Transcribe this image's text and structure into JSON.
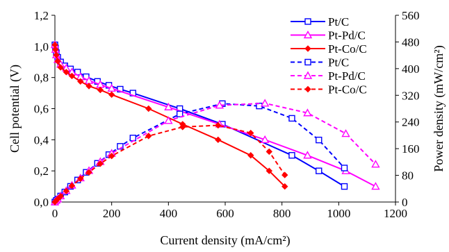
{
  "chart_data": {
    "type": "line",
    "xlabel": "Current density (mA/cm²)",
    "ylabel_left": "Cell potential (V)",
    "ylabel_right": "Power density (mW/cm²)",
    "xlim": [
      0,
      1200
    ],
    "ylim_left": [
      0,
      1.2
    ],
    "ylim_right": [
      0,
      560
    ],
    "x_ticks": [
      0,
      200,
      400,
      600,
      800,
      1000,
      1200
    ],
    "x_tick_labels": [
      "0",
      "200",
      "400",
      "600",
      "800",
      "1000",
      "1200"
    ],
    "y_left_ticks": [
      0,
      0.2,
      0.4,
      0.6,
      0.8,
      1.0,
      1.2
    ],
    "y_left_tick_labels": [
      "0,0",
      "0,2",
      "0,4",
      "0,6",
      "0,8",
      "1,0",
      "1,2"
    ],
    "y_right_ticks": [
      0,
      80,
      160,
      240,
      320,
      400,
      480,
      560
    ],
    "y_right_tick_labels": [
      "0",
      "80",
      "160",
      "240",
      "320",
      "400",
      "480",
      "560"
    ],
    "grid": false,
    "legend_position": "top-right",
    "series": [
      {
        "name": "Pt/C",
        "axis": "left",
        "style": "solid",
        "marker": "square",
        "color": "#0000ff",
        "x": [
          0,
          2,
          5,
          10,
          20,
          35,
          55,
          80,
          110,
          150,
          190,
          230,
          275,
          440,
          590,
          835,
          930,
          1020
        ],
        "y": [
          1.01,
          0.99,
          0.96,
          0.93,
          0.9,
          0.875,
          0.855,
          0.835,
          0.805,
          0.775,
          0.75,
          0.725,
          0.7,
          0.6,
          0.5,
          0.3,
          0.2,
          0.1
        ]
      },
      {
        "name": "Pt-Pd/C",
        "axis": "left",
        "style": "solid",
        "marker": "triangle",
        "color": "#ff00ff",
        "x": [
          0,
          2,
          5,
          10,
          20,
          40,
          60,
          90,
          120,
          160,
          200,
          400,
          580,
          740,
          890,
          1025,
          1130
        ],
        "y": [
          1.01,
          0.98,
          0.945,
          0.915,
          0.885,
          0.86,
          0.835,
          0.805,
          0.78,
          0.755,
          0.73,
          0.61,
          0.5,
          0.4,
          0.3,
          0.2,
          0.1
        ]
      },
      {
        "name": "Pt-Co/C",
        "axis": "left",
        "style": "solid",
        "marker": "diamond",
        "color": "#ff0000",
        "x": [
          0,
          2,
          5,
          10,
          20,
          40,
          60,
          90,
          120,
          160,
          200,
          330,
          450,
          575,
          690,
          755,
          810
        ],
        "y": [
          1.01,
          0.98,
          0.945,
          0.905,
          0.865,
          0.835,
          0.81,
          0.775,
          0.745,
          0.72,
          0.69,
          0.6,
          0.5,
          0.4,
          0.3,
          0.2,
          0.1
        ]
      },
      {
        "name": "Pt/C",
        "axis": "right",
        "style": "dashed",
        "marker": "square",
        "color": "#0000ff",
        "x": [
          0,
          5,
          10,
          20,
          35,
          55,
          80,
          110,
          150,
          190,
          230,
          275,
          440,
          590,
          720,
          835,
          930,
          1020
        ],
        "y": [
          0,
          5,
          9,
          18,
          30,
          47,
          66,
          89,
          116,
          142,
          167,
          192,
          264,
          295,
          288,
          251,
          186,
          102
        ]
      },
      {
        "name": "Pt-Pd/C",
        "axis": "right",
        "style": "dashed",
        "marker": "triangle",
        "color": "#ff00ff",
        "x": [
          0,
          5,
          10,
          20,
          40,
          60,
          90,
          120,
          160,
          200,
          400,
          580,
          740,
          890,
          1025,
          1130
        ],
        "y": [
          0,
          5,
          9,
          18,
          34,
          50,
          72,
          94,
          121,
          146,
          244,
          290,
          296,
          267,
          205,
          113
        ]
      },
      {
        "name": "Pt-Co/C",
        "axis": "right",
        "style": "dashed",
        "marker": "diamond",
        "color": "#ff0000",
        "x": [
          0,
          5,
          10,
          20,
          40,
          60,
          90,
          120,
          160,
          200,
          330,
          450,
          575,
          690,
          755,
          810
        ],
        "y": [
          0,
          5,
          9,
          17,
          33,
          49,
          70,
          89,
          115,
          138,
          198,
          225,
          230,
          207,
          151,
          81
        ]
      }
    ]
  }
}
